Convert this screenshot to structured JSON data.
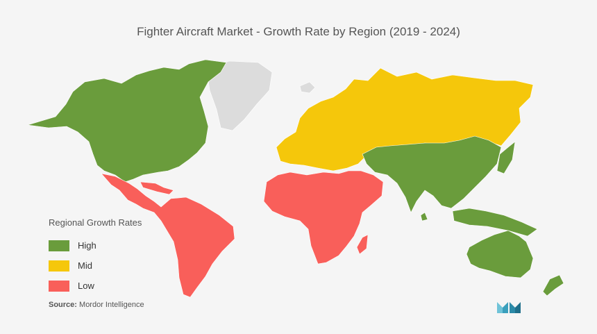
{
  "title": "Fighter Aircraft Market  - Growth Rate by Region (2019 - 2024)",
  "legend": {
    "title": "Regional Growth Rates",
    "items": [
      {
        "label": "High",
        "color": "#6a9c3c"
      },
      {
        "label": "Mid",
        "color": "#f5c70b"
      },
      {
        "label": "Low",
        "color": "#f95f5a"
      }
    ]
  },
  "source": {
    "prefix": "Source:",
    "text": "Mordor Intelligence"
  },
  "map": {
    "no_data_color": "#dcdcdc",
    "regions": [
      {
        "name": "North America",
        "rate": "High"
      },
      {
        "name": "Europe",
        "rate": "Mid"
      },
      {
        "name": "Russia",
        "rate": "Mid"
      },
      {
        "name": "Asia-Pacific",
        "rate": "High"
      },
      {
        "name": "Australia & New Zealand",
        "rate": "High"
      },
      {
        "name": "Latin America",
        "rate": "Low"
      },
      {
        "name": "Middle East & Africa",
        "rate": "Low"
      },
      {
        "name": "Greenland",
        "rate": "none"
      }
    ]
  },
  "logo_icon": "mordor-intelligence-logo-icon"
}
